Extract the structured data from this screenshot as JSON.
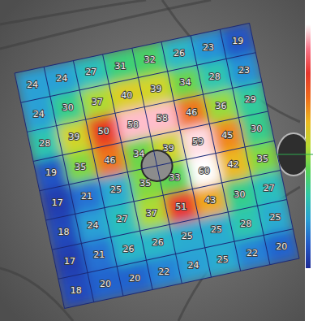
{
  "chart_data": {
    "type": "heatmap",
    "values": [
      [
        24,
        24,
        27,
        31,
        32,
        26,
        23,
        19
      ],
      [
        24,
        30,
        37,
        40,
        39,
        34,
        28,
        23
      ],
      [
        28,
        39,
        50,
        58,
        58,
        46,
        36,
        29
      ],
      [
        19,
        35,
        46,
        34,
        39,
        59,
        45,
        30
      ],
      [
        17,
        21,
        25,
        35,
        33,
        60,
        42,
        35
      ],
      [
        18,
        24,
        27,
        37,
        51,
        43,
        30,
        27
      ],
      [
        17,
        21,
        26,
        26,
        25,
        25,
        28,
        25
      ],
      [
        18,
        20,
        20,
        22,
        24,
        25,
        22,
        20
      ]
    ],
    "zlim": [
      15,
      60
    ],
    "data_labels": true,
    "tick_labels": false
  }
}
